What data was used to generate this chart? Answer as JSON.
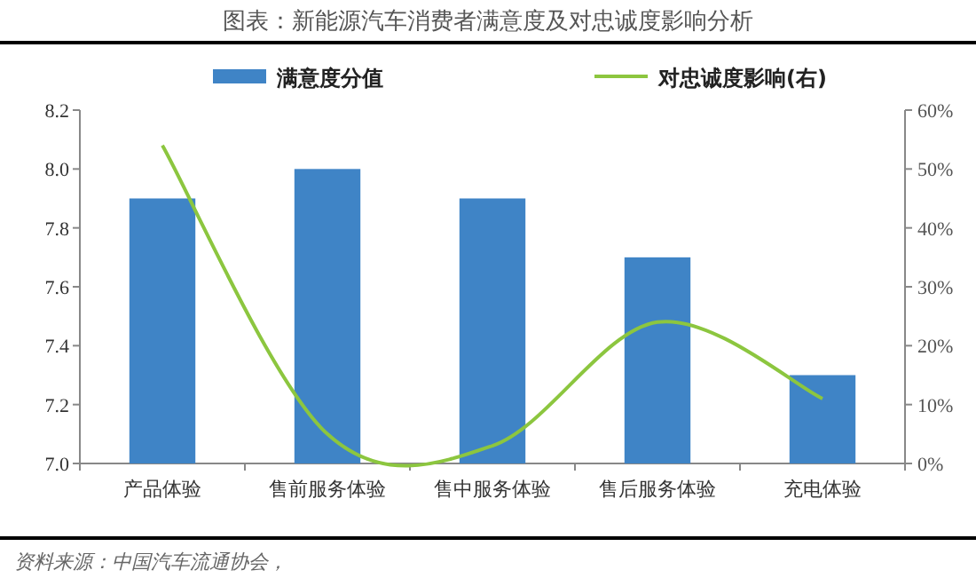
{
  "chart_data": {
    "type": "bar",
    "title": "图表：新能源汽车消费者满意度及对忠诚度影响分析",
    "categories": [
      "产品体验",
      "售前服务体验",
      "售中服务体验",
      "售后服务体验",
      "充电体验"
    ],
    "series": [
      {
        "name": "满意度分值",
        "color": "#3f84c6",
        "values": [
          7.9,
          8.0,
          7.9,
          7.7,
          7.3
        ]
      },
      {
        "name": "对忠诚度影响(右)",
        "type": "line",
        "axis": "y2",
        "color": "#8cc63f",
        "values": [
          54,
          5,
          3,
          24,
          11
        ]
      }
    ],
    "ylim": [
      7.0,
      8.2
    ],
    "yticks": [
      {
        "value": 7.0,
        "label": "7.0"
      },
      {
        "value": 7.2,
        "label": "7.2"
      },
      {
        "value": 7.4,
        "label": "7.4"
      },
      {
        "value": 7.6,
        "label": "7.6"
      },
      {
        "value": 7.8,
        "label": "7.8"
      },
      {
        "value": 8.0,
        "label": "8.0"
      },
      {
        "value": 8.2,
        "label": "8.2"
      }
    ],
    "y2lim": [
      0,
      60
    ],
    "y2ticks": [
      {
        "value": 0,
        "label": "0%"
      },
      {
        "value": 10,
        "label": "10%"
      },
      {
        "value": 20,
        "label": "20%"
      },
      {
        "value": 30,
        "label": "30%"
      },
      {
        "value": 40,
        "label": "40%"
      },
      {
        "value": 50,
        "label": "50%"
      },
      {
        "value": 60,
        "label": "60%"
      }
    ],
    "legend": "top",
    "grid": false,
    "marker": "none",
    "line_style": "solid",
    "annotations": [
      "资料来源：中国汽车流通协会，"
    ]
  }
}
